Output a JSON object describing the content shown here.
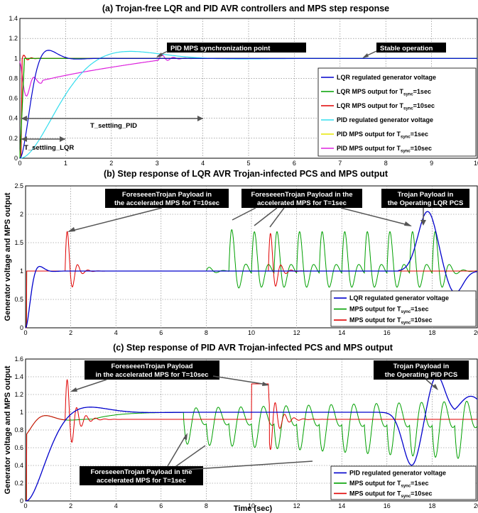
{
  "chart_data": [
    {
      "type": "line",
      "title": "(a) Trojan-free LQR and PID AVR controllers and MPS step response",
      "xlabel": "",
      "ylabel": "",
      "xlim": [
        0,
        10
      ],
      "ylim": [
        0,
        1.4
      ],
      "xticks": [
        "0",
        "1",
        "2",
        "3",
        "4",
        "5",
        "6",
        "7",
        "8",
        "9",
        "10"
      ],
      "yticks": [
        "0",
        "0.2",
        "0.4",
        "0.6",
        "0.8",
        "1",
        "1.2",
        "1.4"
      ],
      "grid": true,
      "legend_position": "bottom-right",
      "series": [
        {
          "name": "LQR regulated generator voltage",
          "color": "#0000cc"
        },
        {
          "name": "LQR MPS output for T",
          "sub": "sync",
          "tail": "=1sec",
          "color": "#00a000"
        },
        {
          "name": "LQR MPS output for T",
          "sub": "sync",
          "tail": "=10sec",
          "color": "#e00000"
        },
        {
          "name": "PID regulated generator voltage",
          "color": "#33ddee"
        },
        {
          "name": "PID MPS output for T",
          "sub": "sync",
          "tail": "=1sec",
          "color": "#e6e600"
        },
        {
          "name": "PID MPS output for T",
          "sub": "sync",
          "tail": "=10sec",
          "color": "#dd22dd"
        }
      ],
      "annotations": [
        {
          "text": "PID MPS synchronization point",
          "x": 3.05,
          "y": 1.0
        },
        {
          "text": "Stable operation",
          "x": 8.0,
          "y": 1.0
        },
        {
          "text": "T_settling_PID",
          "x_start": 0,
          "x_end": 4,
          "y": 0.4
        },
        {
          "text": "T_settling_LQR",
          "x_start": 0,
          "x_end": 1,
          "y": 0.15
        }
      ]
    },
    {
      "type": "line",
      "title": "(b) Step response of LQR AVR Trojan-infected PCS and MPS output",
      "xlabel": "",
      "ylabel": "Generator voltage and MPS output",
      "xlim": [
        0,
        20
      ],
      "ylim": [
        0,
        2.5
      ],
      "xticks": [
        "0",
        "2",
        "4",
        "6",
        "8",
        "10",
        "12",
        "14",
        "16",
        "18",
        "20"
      ],
      "yticks": [
        "0",
        "0.5",
        "1",
        "1.5",
        "2",
        "2.5"
      ],
      "grid": true,
      "legend_position": "bottom-right",
      "series": [
        {
          "name": "LQR regulated generator voltage",
          "color": "#0000cc"
        },
        {
          "name": "MPS output for T",
          "sub": "sync",
          "tail": "=1sec",
          "color": "#00a000"
        },
        {
          "name": "MPS output for T",
          "sub": "sync",
          "tail": "=10sec",
          "color": "#e00000"
        }
      ],
      "annotations": [
        {
          "text": [
            "ForeseeenTrojan Payload in",
            "the accelerated MPS for T=10sec"
          ],
          "target_x": 1.8,
          "target_y": 1.6
        },
        {
          "text": [
            "ForeseeenTrojan Payload in the",
            "accelerated MPS for T=1sec"
          ],
          "target_x": 10.8,
          "target_y": 1.9
        },
        {
          "text": [
            "Trojan Payload in",
            "the Operating LQR PCS"
          ],
          "target_x": 17.8,
          "target_y": 1.9
        }
      ]
    },
    {
      "type": "line",
      "title": "(c) Step response of PID AVR Trojan-infected PCS and MPS output",
      "xlabel": "Time (sec)",
      "ylabel": "Generator voltage and MPS output",
      "xlim": [
        0,
        20
      ],
      "ylim": [
        0,
        1.6
      ],
      "xticks": [
        "0",
        "2",
        "4",
        "6",
        "8",
        "10",
        "12",
        "14",
        "16",
        "18",
        "20"
      ],
      "yticks": [
        "0",
        "0.2",
        "0.4",
        "0.6",
        "0.8",
        "1",
        "1.2",
        "1.4",
        "1.6"
      ],
      "grid": true,
      "legend_position": "bottom-right",
      "series": [
        {
          "name": "PID regulated generator voltage",
          "color": "#0000cc"
        },
        {
          "name": "MPS output for T",
          "sub": "sync",
          "tail": "=1sec",
          "color": "#00a000"
        },
        {
          "name": "MPS output for T",
          "sub": "sync",
          "tail": "=10sec",
          "color": "#e00000"
        }
      ],
      "annotations": [
        {
          "text": [
            "ForeseeenTrojan Payload",
            "in the accelerated MPS for T=10sec"
          ],
          "target_x": 1.8,
          "target_y": 1.2
        },
        {
          "text": [
            "Trojan Payload in",
            "the Operating PID PCS"
          ],
          "target_x": 18.2,
          "target_y": 1.35
        },
        {
          "text": [
            "ForeseeenTrojan Payload in the",
            "accelerated MPS for T=1sec"
          ],
          "target_x": 7.2,
          "target_y": 0.6
        }
      ]
    }
  ]
}
